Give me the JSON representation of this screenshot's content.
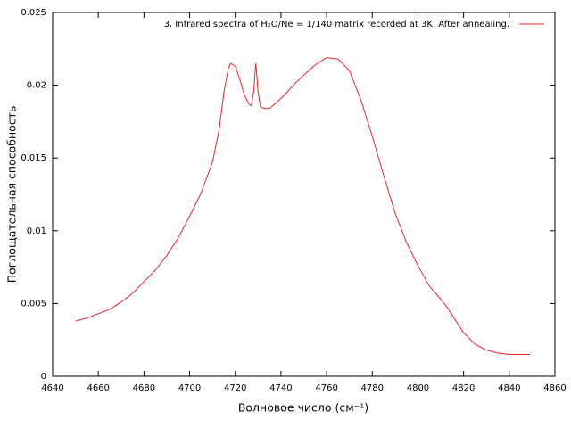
{
  "chart_data": {
    "type": "line",
    "x_label": "Волновое число (см⁻¹)",
    "y_label": "Поглощательная способность",
    "x": [
      4650,
      4655,
      4660,
      4665,
      4670,
      4675,
      4680,
      4685,
      4690,
      4695,
      4700,
      4705,
      4710,
      4713,
      4715,
      4717,
      4718,
      4720,
      4722,
      4724,
      4726,
      4727,
      4728,
      4729,
      4730,
      4731,
      4733,
      4735,
      4738,
      4742,
      4746,
      4750,
      4755,
      4760,
      4765,
      4770,
      4775,
      4780,
      4785,
      4790,
      4795,
      4800,
      4805,
      4810,
      4813,
      4815,
      4820,
      4825,
      4830,
      4835,
      4840,
      4845,
      4849
    ],
    "series": [
      {
        "name": "3. Infrared spectra of H₂O/Ne = 1/140 matrix recorded at 3K. After annealing.",
        "color": "#e8262b",
        "values": [
          0.0038,
          0.004,
          0.0043,
          0.0046,
          0.0051,
          0.0057,
          0.0065,
          0.0073,
          0.0083,
          0.0095,
          0.011,
          0.0126,
          0.0147,
          0.017,
          0.0195,
          0.0212,
          0.0215,
          0.0213,
          0.0204,
          0.0193,
          0.0187,
          0.0186,
          0.0195,
          0.0215,
          0.0195,
          0.0185,
          0.0184,
          0.0184,
          0.0188,
          0.0194,
          0.0201,
          0.0207,
          0.0214,
          0.0219,
          0.0218,
          0.021,
          0.019,
          0.0165,
          0.0138,
          0.0112,
          0.0092,
          0.0076,
          0.0062,
          0.0053,
          0.0047,
          0.0042,
          0.003,
          0.0022,
          0.0018,
          0.0016,
          0.0015,
          0.0015,
          0.0015
        ]
      }
    ],
    "xlim": [
      4640,
      4860
    ],
    "ylim": [
      0,
      0.025
    ],
    "xticks": [
      4640,
      4660,
      4680,
      4700,
      4720,
      4740,
      4760,
      4780,
      4800,
      4820,
      4840,
      4860
    ],
    "yticks": [
      0,
      0.005,
      0.01,
      0.015,
      0.02,
      0.025
    ],
    "legend": "top-right"
  }
}
